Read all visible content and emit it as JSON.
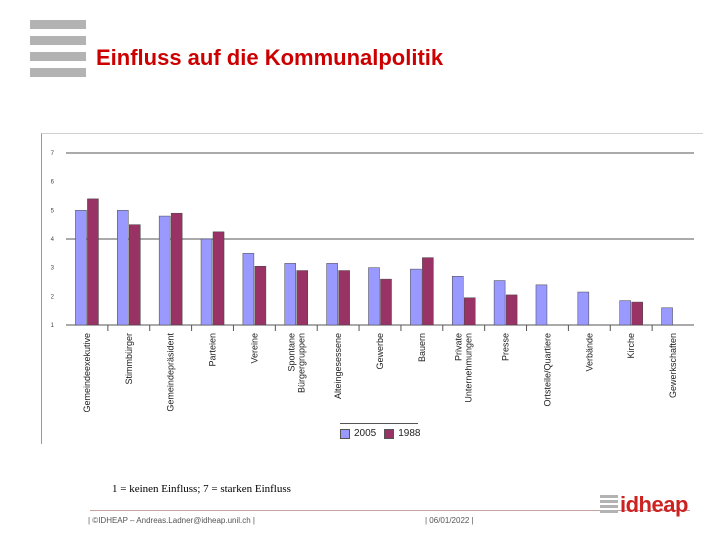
{
  "title": "Einfluss auf die Kommunalpolitik",
  "chart_data": {
    "type": "bar",
    "title": "",
    "xlabel": "",
    "ylabel": "",
    "ylim": [
      1,
      7
    ],
    "yticks": [
      "7",
      "6",
      "5",
      "4",
      "3",
      "2",
      "1"
    ],
    "categories": [
      "Gemeindeexekutive",
      "Stimmbürger",
      "Gemeindepräsident",
      "Parteien",
      "Vereine",
      "Spontane Bürgergruppen",
      "Alteingesessene",
      "Gewerbe",
      "Bauern",
      "Private Unternehmungen",
      "Presse",
      "Ortsteile/Quartiere",
      "Verbände",
      "Kirche",
      "Gewerkschaften"
    ],
    "series": [
      {
        "name": "2005",
        "color": "#9999ff",
        "values": [
          5.0,
          5.0,
          4.8,
          4.0,
          3.5,
          3.15,
          3.15,
          3.0,
          2.95,
          2.7,
          2.55,
          2.4,
          2.15,
          1.85,
          1.6
        ]
      },
      {
        "name": "1988",
        "color": "#993366",
        "values": [
          5.4,
          4.5,
          4.9,
          4.25,
          3.05,
          2.9,
          2.9,
          2.6,
          3.35,
          1.95,
          2.05,
          null,
          null,
          1.8,
          null
        ]
      }
    ],
    "legend": [
      "2005",
      "1988"
    ]
  },
  "footnote": "1 = keinen Einfluss; 7 = starken Einfluss",
  "footer": {
    "left": "| ©IDHEAP – Andreas.Ladner@idheap.unil.ch |",
    "date": "| 06/01/2022 |",
    "brand": "idheap"
  }
}
